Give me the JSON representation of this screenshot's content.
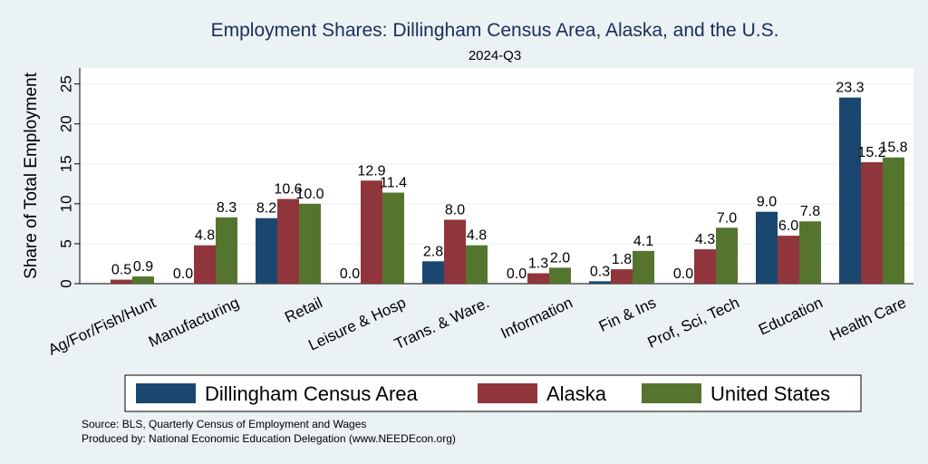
{
  "chart_data": {
    "type": "bar",
    "title": "Employment Shares: Dillingham Census Area, Alaska, and the U.S.",
    "subtitle": "2024-Q3",
    "xlabel": "",
    "ylabel": "Share of Total Employment",
    "ylim": [
      0,
      27
    ],
    "yticks": [
      0,
      5,
      10,
      15,
      20,
      25
    ],
    "grid": true,
    "legend_position": "bottom",
    "categories": [
      "Ag/For/Fish/Hunt",
      "Manufacturing",
      "Retail",
      "Leisure & Hosp",
      "Trans. & Ware.",
      "Information",
      "Fin & Ins",
      "Prof, Sci, Tech",
      "Education",
      "Health Care"
    ],
    "series": [
      {
        "name": "Dillingham Census Area",
        "color": "#1a476f",
        "values": [
          null,
          0.0,
          8.2,
          0.0,
          2.8,
          0.0,
          0.3,
          0.0,
          9.0,
          23.3
        ],
        "labels": [
          "",
          "0.0",
          "8.2",
          "0.0",
          "2.8",
          "0.0",
          "0.3",
          "0.0",
          "9.0",
          "23.3"
        ]
      },
      {
        "name": "Alaska",
        "color": "#90353b",
        "values": [
          0.5,
          4.8,
          10.6,
          12.9,
          8.0,
          1.3,
          1.8,
          4.3,
          6.0,
          15.2
        ],
        "labels": [
          "0.5",
          "4.8",
          "10.6",
          "12.9",
          "8.0",
          "1.3",
          "1.8",
          "4.3",
          "6.0",
          "15.2"
        ]
      },
      {
        "name": "United States",
        "color": "#55752f",
        "values": [
          0.9,
          8.3,
          10.0,
          11.4,
          4.8,
          2.0,
          4.1,
          7.0,
          7.8,
          15.8
        ],
        "labels": [
          "0.9",
          "8.3",
          "10.0",
          "11.4",
          "4.8",
          "2.0",
          "4.1",
          "7.0",
          "7.8",
          "15.8"
        ]
      }
    ],
    "notes": [
      "Source: BLS, Quarterly Census of Employment and Wages",
      "Produced by: National Economic Education Delegation (www.NEEDEcon.org)"
    ]
  }
}
